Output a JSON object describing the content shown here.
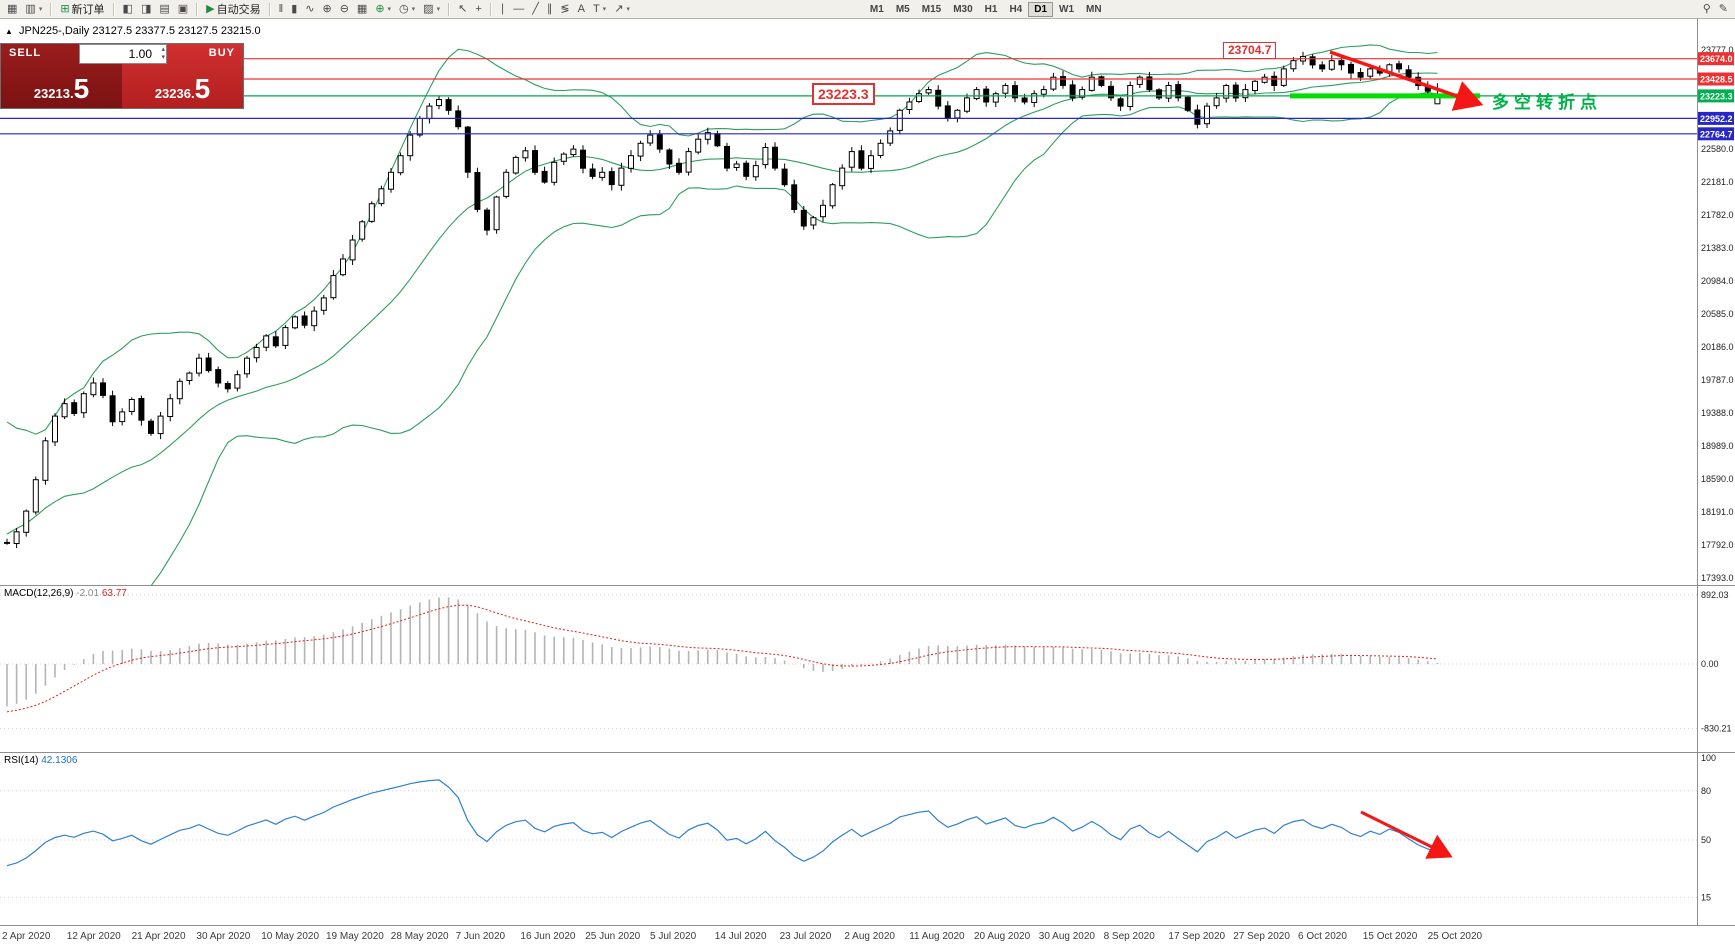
{
  "toolbar": {
    "buttons": [
      {
        "name": "new-chart",
        "glyph": "▦"
      },
      {
        "name": "profiles",
        "glyph": "▥",
        "caret": true
      },
      {
        "sep": true
      },
      {
        "name": "new-order",
        "glyph": "⊞",
        "glyph_color": "#1e8e3e",
        "label": "新订单"
      },
      {
        "sep": true
      },
      {
        "name": "market-watch",
        "glyph": "◧"
      },
      {
        "name": "data-window",
        "glyph": "◨"
      },
      {
        "name": "navigator",
        "glyph": "▤"
      },
      {
        "name": "terminal",
        "glyph": "▣"
      },
      {
        "sep": true
      },
      {
        "name": "auto-trading",
        "glyph": "▶",
        "glyph_color": "#1e8e3e",
        "label": "自动交易"
      },
      {
        "sep": true
      },
      {
        "name": "bar-chart-mode",
        "glyph": "‖"
      },
      {
        "name": "candlestick-chart-mode",
        "glyph": "▮"
      },
      {
        "name": "line-chart-mode",
        "glyph": "∿"
      },
      {
        "name": "zoom-in",
        "glyph": "⊕"
      },
      {
        "name": "zoom-out",
        "glyph": "⊖"
      },
      {
        "name": "tile-windows",
        "glyph": "▦"
      },
      {
        "name": "indicators",
        "glyph": "⊕",
        "glyph_color": "#1e8e3e",
        "caret": true
      },
      {
        "name": "periods",
        "glyph": "◷",
        "caret": true
      },
      {
        "name": "templates",
        "glyph": "▨",
        "caret": true
      },
      {
        "sep": true
      },
      {
        "name": "cursor",
        "glyph": "↖"
      },
      {
        "name": "crosshair",
        "glyph": "+"
      },
      {
        "sep": true
      },
      {
        "name": "vertical-line",
        "glyph": "∣"
      },
      {
        "name": "horizontal-line",
        "glyph": "―"
      },
      {
        "name": "trendline",
        "glyph": "╱"
      },
      {
        "name": "equidistant-channel",
        "glyph": "∥"
      },
      {
        "name": "fibonacci-retracement",
        "glyph": "≶"
      },
      {
        "name": "text-tool",
        "glyph": "A"
      },
      {
        "name": "label-tool",
        "glyph": "T",
        "caret": true
      },
      {
        "name": "arrows-tool",
        "glyph": "↗",
        "caret": true
      }
    ],
    "timeframes": [
      "M1",
      "M5",
      "M15",
      "M30",
      "H1",
      "H4",
      "D1",
      "W1",
      "MN"
    ],
    "active_timeframe": "D1",
    "right_buttons": [
      {
        "name": "search",
        "glyph": "⚲"
      },
      {
        "name": "quick-edit",
        "glyph": "✎"
      }
    ]
  },
  "header": {
    "symbol_period": "JPN225-,Daily",
    "ohlc": "23127.5 23377.5 23127.5 23215.0"
  },
  "trade_panel": {
    "sell_label": "SELL",
    "buy_label": "BUY",
    "volume": "1.00",
    "sell_price_small": "23213.",
    "sell_price_big": "5",
    "buy_price_small": "23236.",
    "buy_price_big": "5"
  },
  "callouts": {
    "high": "23704.7",
    "pivot": "23223.3"
  },
  "annotation": {
    "text": "多空转折点"
  },
  "indicators": {
    "macd_label": "MACD(12,26,9)",
    "macd_value_main": "-2.01",
    "macd_value_signal": "63.77",
    "rsi_label": "RSI(14)",
    "rsi_value": "42.1306"
  },
  "chart_data": {
    "type": "candlestick",
    "symbol": "JPN225-",
    "timeframe": "Daily",
    "current_bar": {
      "open": 23127.5,
      "high": 23377.5,
      "low": 23127.5,
      "close": 23215.0
    },
    "colors": {
      "bollinger": "#2e9e5e",
      "arrow": "#f51616",
      "pivot_highlight": "#00dd00",
      "macd_signal": "#e02020",
      "macd_histogram": "#b4b4b4",
      "rsi_line": "#2f80d0",
      "resistance": "#f03030",
      "support": "#2727c8",
      "pivot": "#00a651"
    },
    "levels": [
      {
        "name": "resistance-23674",
        "value": 23674.0,
        "color": "#f03030",
        "tag": true
      },
      {
        "name": "resistance-23428",
        "value": 23428.5,
        "color": "#f03030",
        "tag": true
      },
      {
        "name": "pivot-23223",
        "value": 23223.3,
        "color": "#00a651",
        "tag": true,
        "tag_color": "#00b050"
      },
      {
        "name": "support-22952",
        "value": 22952.2,
        "color": "#2727c8",
        "tag": true
      },
      {
        "name": "support-22764",
        "value": 22764.7,
        "color": "#2727c8",
        "tag": true
      }
    ],
    "price_axis_ticks": [
      23777.0,
      22580.0,
      22181.0,
      21782.0,
      21383.0,
      20984.0,
      20585.0,
      20186.0,
      19787.0,
      19388.0,
      18989.0,
      18590.0,
      18191.0,
      17792.0,
      17393.0
    ],
    "macd_axis_ticks": [
      892.03,
      0.0,
      -830.21
    ],
    "rsi_axis_ticks": [
      100,
      80,
      50,
      15
    ],
    "indicator_settings": {
      "bollinger": {
        "period": 20,
        "deviation": 2
      },
      "macd": {
        "fast": 12,
        "slow": 26,
        "signal": 9
      },
      "rsi": {
        "period": 14
      }
    },
    "warmup_closes": [
      21500,
      21000,
      20400,
      19700,
      18600,
      17400,
      16600,
      17000,
      16800,
      17100,
      17800,
      18200,
      18900,
      19300,
      18700,
      18200,
      17900,
      18100,
      18400,
      18700,
      18000,
      17700,
      17650,
      17750,
      17820
    ],
    "closes": [
      17820,
      17950,
      18200,
      18580,
      19050,
      19350,
      19500,
      19380,
      19620,
      19750,
      19600,
      19280,
      19400,
      19550,
      19300,
      19140,
      19350,
      19560,
      19770,
      19870,
      20050,
      19900,
      19750,
      19680,
      19850,
      20050,
      20180,
      20320,
      20200,
      20420,
      20550,
      20450,
      20620,
      20780,
      21050,
      21250,
      21480,
      21700,
      21920,
      22100,
      22300,
      22500,
      22750,
      22950,
      23100,
      23180,
      23050,
      22850,
      22300,
      21850,
      21600,
      22000,
      22300,
      22480,
      22560,
      22300,
      22180,
      22420,
      22520,
      22580,
      22350,
      22250,
      22300,
      22150,
      22350,
      22500,
      22650,
      22750,
      22580,
      22400,
      22300,
      22550,
      22700,
      22780,
      22620,
      22350,
      22400,
      22250,
      22380,
      22600,
      22350,
      22150,
      21850,
      21650,
      21750,
      21900,
      22150,
      22350,
      22550,
      22350,
      22500,
      22650,
      22800,
      23050,
      23150,
      23250,
      23300,
      23100,
      22950,
      23050,
      23200,
      23300,
      23150,
      23250,
      23350,
      23200,
      23150,
      23250,
      23300,
      23450,
      23350,
      23200,
      23300,
      23450,
      23350,
      23200,
      23100,
      23350,
      23450,
      23300,
      23200,
      23350,
      23200,
      23050,
      22880,
      23100,
      23200,
      23350,
      23200,
      23300,
      23400,
      23450,
      23350,
      23550,
      23650,
      23700,
      23600,
      23550,
      23650,
      23600,
      23500,
      23450,
      23550,
      23500,
      23600,
      23550,
      23450,
      23350,
      23280,
      23215
    ],
    "dates": [
      "2 Apr 2020",
      "12 Apr 2020",
      "21 Apr 2020",
      "30 Apr 2020",
      "10 May 2020",
      "19 May 2020",
      "28 May 2020",
      "7 Jun 2020",
      "16 Jun 2020",
      "25 Jun 2020",
      "5 Jul 2020",
      "14 Jul 2020",
      "23 Jul 2020",
      "2 Aug 2020",
      "11 Aug 2020",
      "20 Aug 2020",
      "30 Aug 2020",
      "8 Sep 2020",
      "17 Sep 2020",
      "27 Sep 2020",
      "6 Oct 2020",
      "15 Oct 2020",
      "25 Oct 2020"
    ]
  }
}
